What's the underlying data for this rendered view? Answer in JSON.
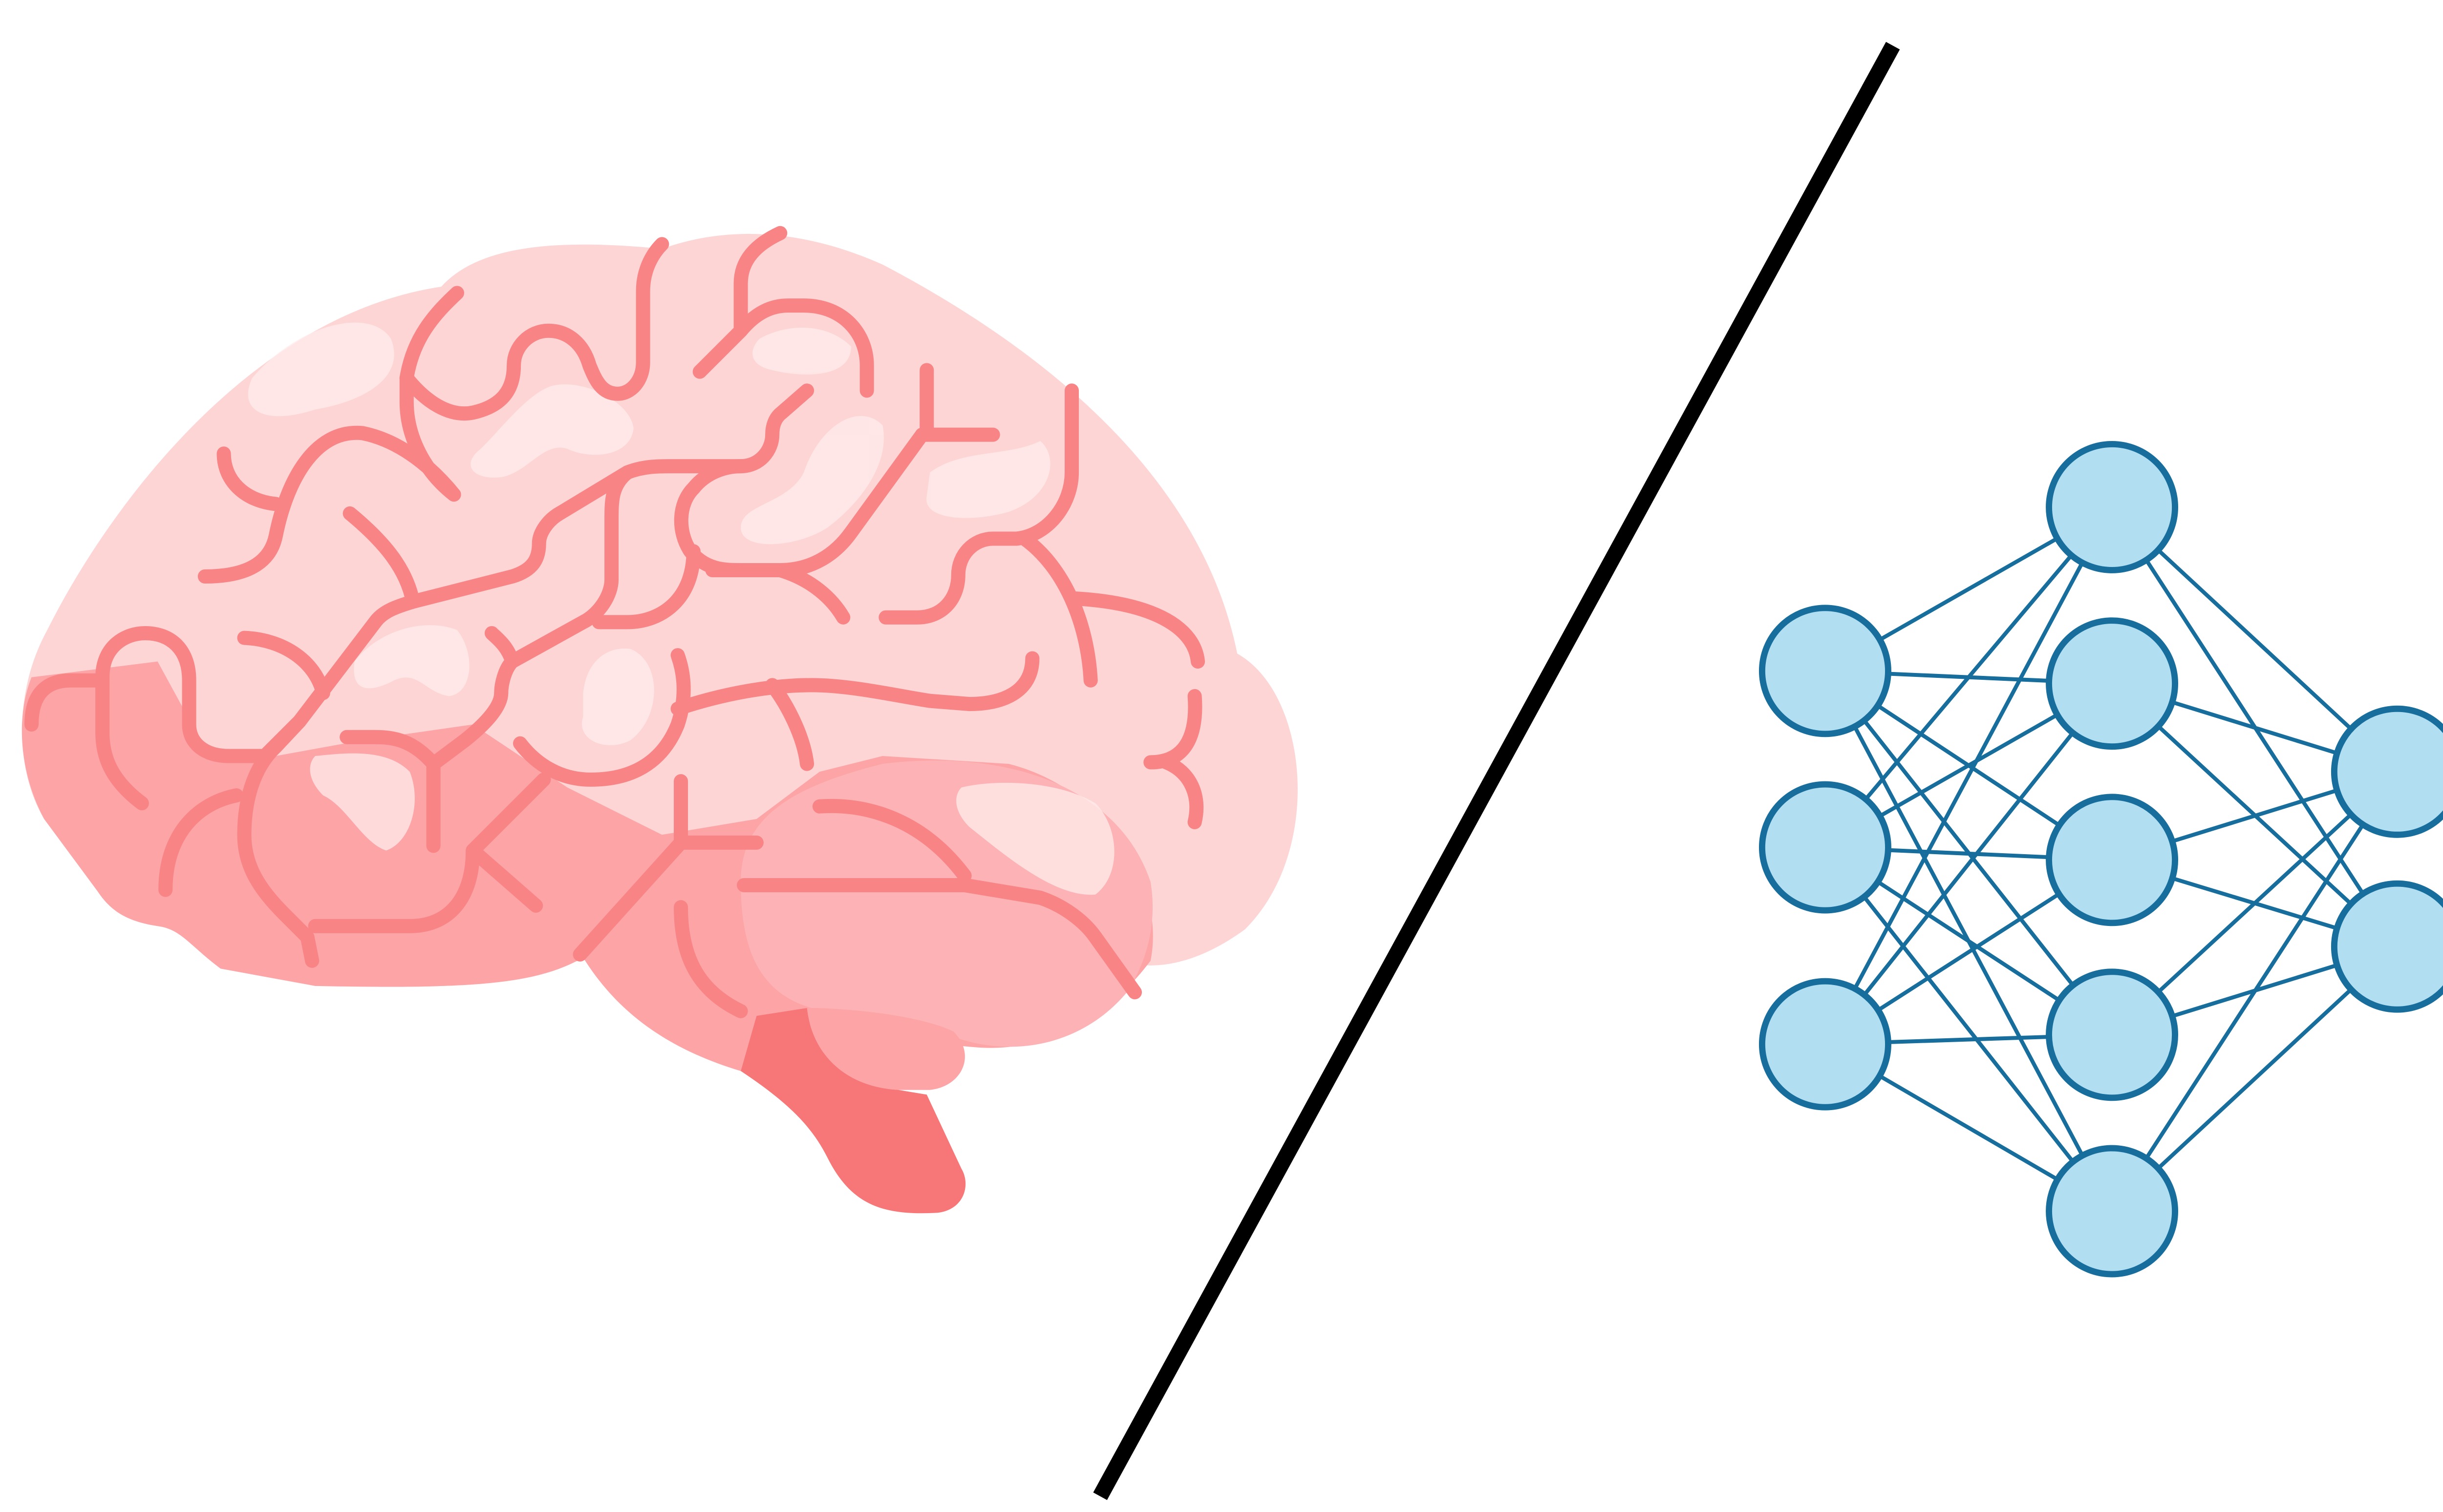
{
  "colors": {
    "background": "#ffffff",
    "brain_light": "#fdd5d5",
    "brain_mid": "#fdb3b5",
    "brain_dark": "#fda4a6",
    "brain_lines": "#f88486",
    "brain_highlight": "#ffecec",
    "brainstem": "#f77677",
    "divider": "#000000",
    "node_fill": "#b1def1",
    "node_stroke": "#176d9b",
    "edge": "#176d9b"
  },
  "network": {
    "layers": [
      3,
      5,
      2
    ],
    "connectivity": "fully-connected"
  },
  "icons": [
    "brain-icon",
    "divider-line",
    "neural-network-icon"
  ]
}
